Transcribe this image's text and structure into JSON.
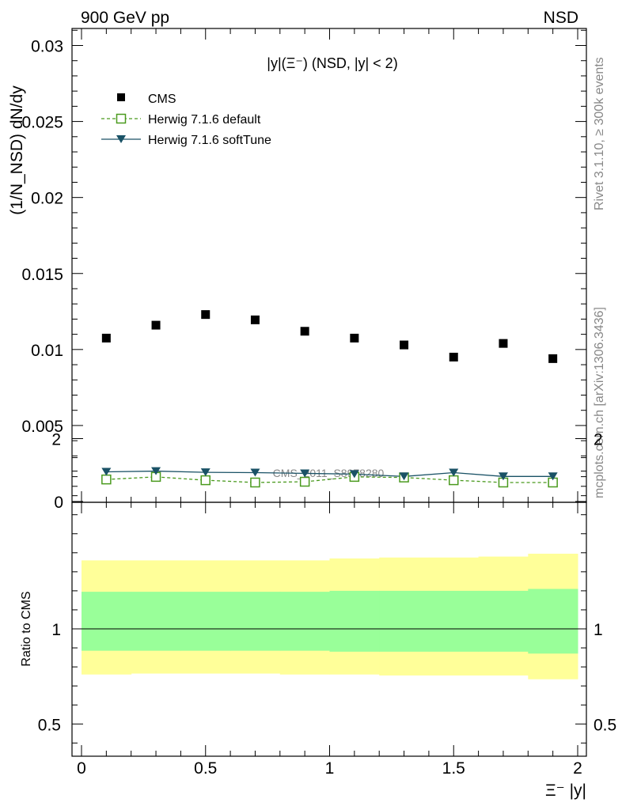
{
  "header": {
    "left": "900 GeV pp",
    "right": "NSD"
  },
  "side_texts": {
    "rivet": "Rivet 3.1.10, ≥ 300k events",
    "mcplots": "mcplots.cern.ch [arXiv:1306.3436]"
  },
  "chart_data": [
    {
      "type": "scatter",
      "title": "|y|(Ξ⁻) (NSD, |y| < 2)",
      "ylabel": "(1/N_NSD) dN/dy",
      "xlabel": "Ξ⁻ |y|",
      "xlim": [
        0,
        2
      ],
      "ylim": [
        0,
        0.031
      ],
      "x_ticks": [
        "0",
        "0.5",
        "1",
        "1.5",
        "2"
      ],
      "y_ticks": [
        "0",
        "0.005",
        "0.01",
        "0.015",
        "0.02",
        "0.025",
        "0.03"
      ],
      "watermark": "CMS_2011_S8978280",
      "legend_position": "top-left",
      "bins": [
        [
          0.0,
          0.2
        ],
        [
          0.2,
          0.4
        ],
        [
          0.4,
          0.6
        ],
        [
          0.6,
          0.8
        ],
        [
          0.8,
          1.0
        ],
        [
          1.0,
          1.2
        ],
        [
          1.2,
          1.4
        ],
        [
          1.4,
          1.6
        ],
        [
          1.6,
          1.8
        ],
        [
          1.8,
          2.0
        ]
      ],
      "series": [
        {
          "name": "CMS",
          "style": "black-square",
          "color": "#000000",
          "x": [
            0.1,
            0.3,
            0.5,
            0.7,
            0.9,
            1.1,
            1.3,
            1.5,
            1.7,
            1.9
          ],
          "values": [
            0.01075,
            0.0116,
            0.0123,
            0.01195,
            0.0112,
            0.01075,
            0.0103,
            0.0095,
            0.0104,
            0.0094
          ]
        },
        {
          "name": "Herwig 7.1.6 default",
          "style": "open-square-dashed",
          "color": "#4a9a1e",
          "x": [
            0.1,
            0.3,
            0.5,
            0.7,
            0.9,
            1.1,
            1.3,
            1.5,
            1.7,
            1.9
          ],
          "values": [
            0.00145,
            0.00162,
            0.0014,
            0.00125,
            0.0013,
            0.00162,
            0.00158,
            0.0014,
            0.00125,
            0.00125
          ]
        },
        {
          "name": "Herwig 7.1.6 softTune",
          "style": "filled-triangle-solid",
          "color": "#1a5266",
          "x": [
            0.1,
            0.3,
            0.5,
            0.7,
            0.9,
            1.1,
            1.3,
            1.5,
            1.7,
            1.9
          ],
          "values": [
            0.00195,
            0.002,
            0.00192,
            0.0019,
            0.00185,
            0.0018,
            0.00165,
            0.0019,
            0.00165,
            0.00165
          ]
        }
      ]
    },
    {
      "type": "area",
      "ylabel": "Ratio to CMS",
      "xlabel": "Ξ⁻ |y|",
      "xlim": [
        0,
        2
      ],
      "ylim": [
        0.35,
        2.35
      ],
      "y_ticks": [
        "0.5",
        "1",
        "2"
      ],
      "reference_line": 1,
      "bands": [
        {
          "name": "yellow",
          "color": "#ffff99",
          "lower": [
            0.76,
            0.765,
            0.765,
            0.765,
            0.76,
            0.76,
            0.755,
            0.755,
            0.755,
            0.735
          ],
          "upper": [
            1.36,
            1.36,
            1.36,
            1.36,
            1.36,
            1.37,
            1.375,
            1.375,
            1.38,
            1.395
          ]
        },
        {
          "name": "green",
          "color": "#99ff99",
          "lower": [
            0.885,
            0.885,
            0.885,
            0.885,
            0.885,
            0.88,
            0.88,
            0.88,
            0.88,
            0.87
          ],
          "upper": [
            1.195,
            1.195,
            1.195,
            1.195,
            1.195,
            1.2,
            1.2,
            1.2,
            1.2,
            1.21
          ]
        }
      ]
    }
  ]
}
